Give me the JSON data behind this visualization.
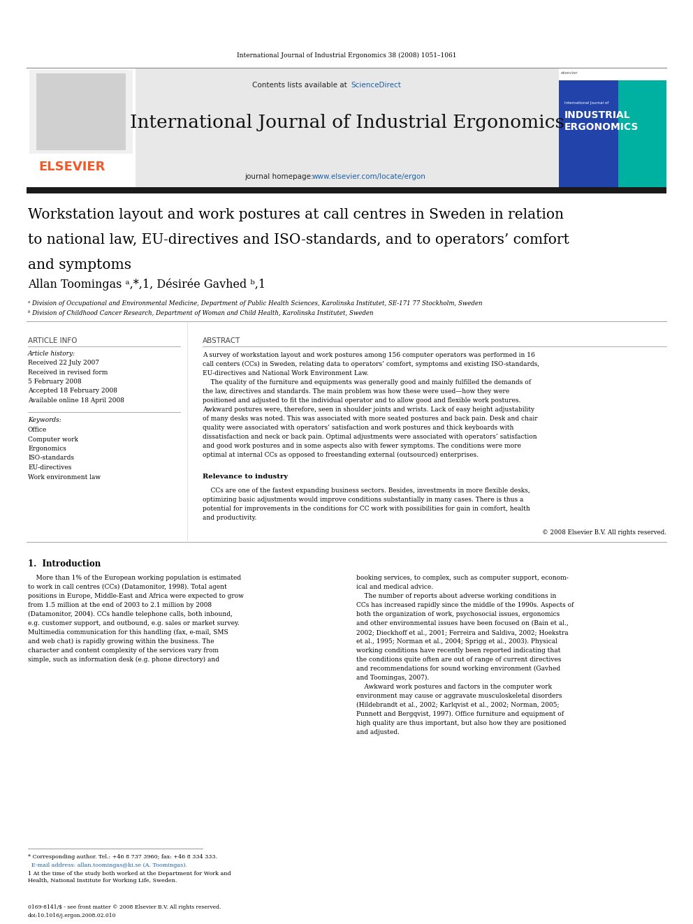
{
  "page_width": 9.92,
  "page_height": 13.23,
  "bg_color": "#ffffff",
  "journal_ref": "International Journal of Industrial Ergonomics 38 (2008) 1051–1061",
  "header_bg": "#e8e8e8",
  "contents_text": "Contents lists available at",
  "sciencedirect_text": "ScienceDirect",
  "sciencedirect_color": "#1a5fa8",
  "journal_name": "International Journal of Industrial Ergonomics",
  "journal_homepage_label": "journal homepage:",
  "journal_url": "www.elsevier.com/locate/ergon",
  "journal_url_color": "#1a5fa8",
  "paper_title_line1": "Workstation layout and work postures at call centres in Sweden in relation",
  "paper_title_line2": "to national law, EU-directives and ISO-standards, and to operators’ comfort",
  "paper_title_line3": "and symptoms",
  "authors": "Allan Toomingas ᵃ,*,1, Désirée Gavhed ᵇ,1",
  "affil_a": "ᵃ Division of Occupational and Environmental Medicine, Department of Public Health Sciences, Karolinska Institutet, SE-171 77 Stockholm, Sweden",
  "affil_b": "ᵇ Division of Childhood Cancer Research, Department of Woman and Child Health, Karolinska Institutet, Sweden",
  "section_article_info": "ARTICLE INFO",
  "section_abstract": "ABSTRACT",
  "article_history_label": "Article history:",
  "article_history_lines": [
    "Received 22 July 2007",
    "Received in revised form",
    "5 February 2008",
    "Accepted 18 February 2008",
    "Available online 18 April 2008"
  ],
  "keywords_label": "Keywords:",
  "keywords_lines": [
    "Office",
    "Computer work",
    "Ergonomics",
    "ISO-standards",
    "EU-directives",
    "Work environment law"
  ],
  "abstract_lines": [
    "A survey of workstation layout and work postures among 156 computer operators was performed in 16",
    "call centers (CCs) in Sweden, relating data to operators’ comfort, symptoms and existing ISO-standards,",
    "EU-directives and National Work Environment Law.",
    "    The quality of the furniture and equipments was generally good and mainly fulfilled the demands of",
    "the law, directives and standards. The main problem was how these were used—how they were",
    "positioned and adjusted to fit the individual operator and to allow good and flexible work postures.",
    "Awkward postures were, therefore, seen in shoulder joints and wrists. Lack of easy height adjustability",
    "of many desks was noted. This was associated with more seated postures and back pain. Desk and chair",
    "quality were associated with operators’ satisfaction and work postures and thick keyboards with",
    "dissatisfaction and neck or back pain. Optimal adjustments were associated with operators’ satisfaction",
    "and good work postures and in some aspects also with fewer symptoms. The conditions were more",
    "optimal at internal CCs as opposed to freestanding external (outsourced) enterprises."
  ],
  "relevance_title": "Relevance to industry",
  "relevance_lines": [
    "    CCs are one of the fastest expanding business sectors. Besides, investments in more flexible desks,",
    "optimizing basic adjustments would improve conditions substantially in many cases. There is thus a",
    "potential for improvements in the conditions for CC work with possibilities for gain in comfort, health",
    "and productivity."
  ],
  "copyright_text": "© 2008 Elsevier B.V. All rights reserved.",
  "intro_title": "1.  Introduction",
  "intro_col1_lines": [
    "    More than 1% of the European working population is estimated",
    "to work in call centres (CCs) (Datamonitor, 1998). Total agent",
    "positions in Europe, Middle-East and Africa were expected to grow",
    "from 1.5 million at the end of 2003 to 2.1 million by 2008",
    "(Datamonitor, 2004). CCs handle telephone calls, both inbound,",
    "e.g. customer support, and outbound, e.g. sales or market survey.",
    "Multimedia communication for this handling (fax, e-mail, SMS",
    "and web chat) is rapidly growing within the business. The",
    "character and content complexity of the services vary from",
    "simple, such as information desk (e.g. phone directory) and"
  ],
  "intro_col2_lines": [
    "booking services, to complex, such as computer support, econom-",
    "ical and medical advice.",
    "    The number of reports about adverse working conditions in",
    "CCs has increased rapidly since the middle of the 1990s. Aspects of",
    "both the organization of work, psychosocial issues, ergonomics",
    "and other environmental issues have been focused on (Bain et al.,",
    "2002; Dieckhoff et al., 2001; Ferreira and Saldiva, 2002; Hoekstra",
    "et al., 1995; Norman et al., 2004; Sprigg et al., 2003). Physical",
    "working conditions have recently been reported indicating that",
    "the conditions quite often are out of range of current directives",
    "and recommendations for sound working environment (Gavhed",
    "and Toomingas, 2007).",
    "    Awkward work postures and factors in the computer work",
    "environment may cause or aggravate musculoskeletal disorders",
    "(Hildebrandt et al., 2002; Karlqvist et al., 2002; Norman, 2005;",
    "Punnett and Bergqvist, 1997). Office furniture and equipment of",
    "high quality are thus important, but also how they are positioned",
    "and adjusted."
  ],
  "footnote_line": "* Corresponding author. Tel.: +46 8 737 3960; fax: +46 8 334 333.",
  "footnote_email": "  E-mail address: allan.toomingas@ki.se (A. Toomingas).",
  "footnote_1a": "1 At the time of the study both worked at the Department for Work and",
  "footnote_1b": "Health, National Institute for Working Life, Sweden.",
  "issn_text": "0169-8141/$ - see front matter © 2008 Elsevier B.V. All rights reserved.",
  "doi_text": "doi:10.1016/j.ergon.2008.02.010",
  "elsevier_color": "#f05a28",
  "line_color": "#aaaaaa",
  "dark_bar_color": "#1a1a1a",
  "teal_color": "#00b0a0",
  "blue_cover_color": "#2244aa"
}
